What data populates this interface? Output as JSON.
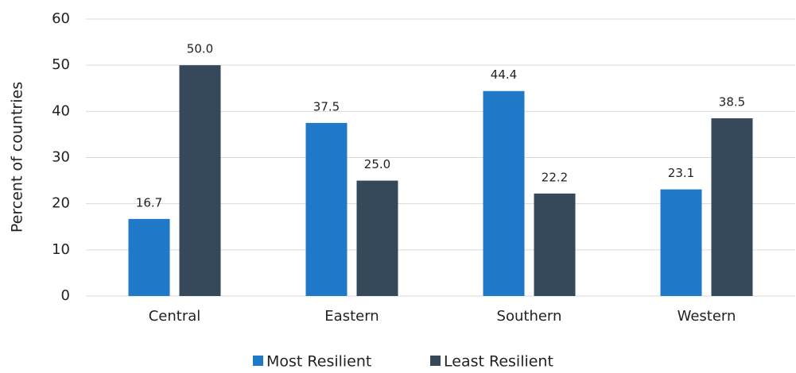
{
  "chart_data": {
    "type": "bar",
    "y_label": "Percent of countries",
    "categories": [
      "Central",
      "Eastern",
      "Southern",
      "Western"
    ],
    "series": [
      {
        "name": "Most Resilient",
        "color": "#2078c8",
        "values": [
          16.7,
          37.5,
          44.4,
          23.1
        ],
        "value_labels": [
          "16.7",
          "37.5",
          "44.4",
          "23.1"
        ]
      },
      {
        "name": "Least Resilient",
        "color": "#36495a",
        "values": [
          50.0,
          25.0,
          22.2,
          38.5
        ],
        "value_labels": [
          "50.0",
          "25.0",
          "22.2",
          "38.5"
        ]
      }
    ],
    "ylim": [
      0,
      60
    ],
    "yticks": [
      0,
      10,
      20,
      30,
      40,
      50,
      60
    ],
    "grid": true,
    "legend": "bottom"
  }
}
